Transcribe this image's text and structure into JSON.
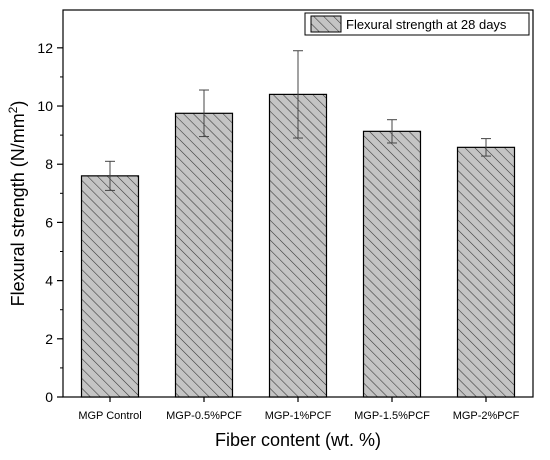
{
  "chart_data": {
    "type": "bar",
    "categories": [
      "MGP Control",
      "MGP-0.5%PCF",
      "MGP-1%PCF",
      "MGP-1.5%PCF",
      "MGP-2%PCF"
    ],
    "series": [
      {
        "name": "Flexural strength at 28 days",
        "values": [
          7.6,
          9.75,
          10.4,
          9.13,
          8.58
        ],
        "error": [
          0.5,
          0.8,
          1.5,
          0.4,
          0.3
        ]
      }
    ],
    "xlabel": "Fiber content (wt. %)",
    "ylabel": "Flexural strength (N/mm",
    "ylabel_sup": "2",
    "ylabel_tail": ")",
    "ylim": [
      0,
      13.3
    ],
    "yticks": [
      0,
      2,
      4,
      6,
      8,
      10,
      12
    ],
    "ytick_labels": [
      "0",
      "2",
      "4",
      "6",
      "8",
      "10",
      "12"
    ],
    "grid": false,
    "legend_position": "top-right",
    "bar_fill": "#c4c4c4",
    "bar_hatch": "diagonal",
    "colors": {
      "bar_fill": "#c4c4c4",
      "stroke": "#000000",
      "errorbar": "#444444"
    }
  }
}
